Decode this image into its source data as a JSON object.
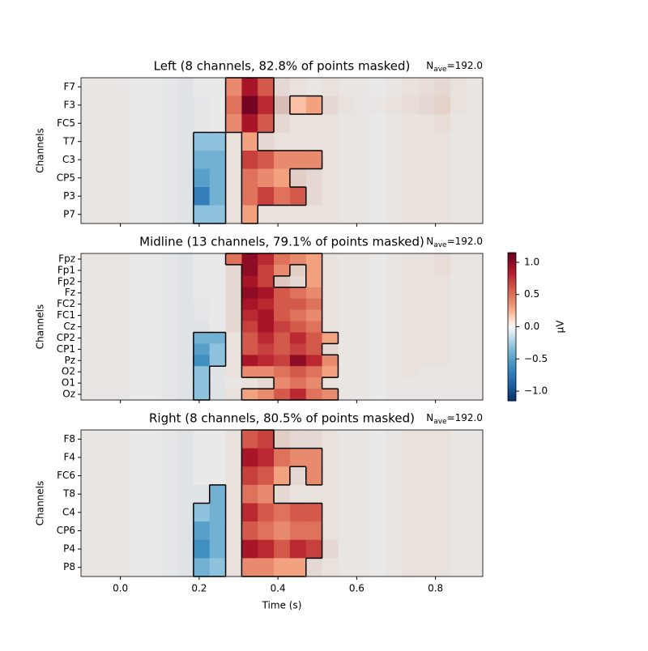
{
  "chart_data": [
    {
      "type": "heatmap",
      "title": "Left (8 channels, 82.8% of points masked)",
      "nave": {
        "symbol": "N",
        "subscript": "ave",
        "text": "=192.0"
      },
      "ylabel": "Channels",
      "xlim": [
        -0.1,
        0.92
      ],
      "xticks": [
        {
          "value": 0,
          "label": "0.0"
        },
        {
          "value": 0.2,
          "label": "0.2"
        },
        {
          "value": 0.4,
          "label": "0.4"
        },
        {
          "value": 0.6,
          "label": "0.6"
        },
        {
          "value": 0.8,
          "label": "0.8"
        }
      ],
      "categories": [
        "F7",
        "F3",
        "FC5",
        "T7",
        "C3",
        "CP5",
        "P3",
        "P7"
      ],
      "values": [
        [
          0.05,
          0.05,
          0.05,
          0,
          0,
          -0.05,
          -0.1,
          0,
          0,
          0.4,
          0.9,
          0.6,
          0.2,
          0.1,
          0.05,
          0.1,
          0.05,
          0.05,
          0,
          0.05,
          0.1,
          0.15,
          0.2,
          0.1,
          0.05
        ],
        [
          0.05,
          0.05,
          0.05,
          0,
          0,
          -0.05,
          -0.1,
          -0.05,
          0,
          0.5,
          1.1,
          0.8,
          0.5,
          0.2,
          0.3,
          0.2,
          0.1,
          0.05,
          0.05,
          0.1,
          0.15,
          0.2,
          0.25,
          0.1,
          0.05
        ],
        [
          0.05,
          0.05,
          0.05,
          0,
          0,
          -0.05,
          -0.1,
          -0.05,
          0,
          0.4,
          0.9,
          0.6,
          0.2,
          0.1,
          0.1,
          0.1,
          0.05,
          0.05,
          0,
          0.05,
          0.1,
          0.1,
          0.15,
          0.05,
          0.05
        ],
        [
          0.05,
          0.05,
          0.05,
          0,
          0,
          -0.05,
          -0.1,
          -0.3,
          -0.3,
          0.1,
          0.3,
          0.2,
          0.1,
          0.1,
          0.1,
          0.1,
          0.05,
          0.05,
          0,
          0.05,
          0.1,
          0.1,
          0.1,
          0.05,
          0.05
        ],
        [
          0.05,
          0.05,
          0.05,
          0,
          0,
          -0.05,
          -0.1,
          -0.4,
          -0.4,
          0.1,
          0.7,
          0.6,
          0.4,
          0.4,
          0.4,
          0.1,
          0.05,
          0.05,
          0,
          0.05,
          0.1,
          0.1,
          0.1,
          0.05,
          0.05
        ],
        [
          0.05,
          0.05,
          0.05,
          0,
          0,
          -0.05,
          -0.1,
          -0.5,
          -0.4,
          0.1,
          0.5,
          0.4,
          0.3,
          0.3,
          0.2,
          0.1,
          0.05,
          0.05,
          0,
          0.05,
          0.1,
          0.1,
          0.1,
          0.05,
          0.05
        ],
        [
          0.05,
          0.05,
          0.05,
          0,
          0,
          -0.05,
          -0.1,
          -0.7,
          -0.4,
          0.1,
          0.5,
          0.7,
          0.5,
          0.6,
          0.2,
          0.1,
          0.05,
          0.05,
          0,
          0.05,
          0.1,
          0.1,
          0.1,
          0.05,
          0.05
        ],
        [
          0.05,
          0.05,
          0.05,
          0,
          0,
          -0.05,
          -0.1,
          -0.3,
          -0.3,
          0.1,
          0.3,
          0.1,
          0.1,
          0.1,
          0.1,
          0.1,
          0.05,
          0.05,
          0,
          0.05,
          0.1,
          0.1,
          0.1,
          0.05,
          0.05
        ]
      ],
      "mask": [
        "0000000001110000000000000",
        "0000000001110110000000000",
        "0000000001110000000000000",
        "0000000110100000000000000",
        "0000000110111110000000000",
        "0000000110111000000000000",
        "0000000110111100000000000",
        "0000000110100000000000000"
      ]
    },
    {
      "type": "heatmap",
      "title": "Midline (13 channels, 79.1% of points masked)",
      "nave": {
        "symbol": "N",
        "subscript": "ave",
        "text": "=192.0"
      },
      "ylabel": "Channels",
      "xlim": [
        -0.1,
        0.92
      ],
      "xticks": [
        {
          "value": 0,
          "label": "0.0"
        },
        {
          "value": 0.2,
          "label": "0.2"
        },
        {
          "value": 0.4,
          "label": "0.4"
        },
        {
          "value": 0.6,
          "label": "0.6"
        },
        {
          "value": 0.8,
          "label": "0.8"
        }
      ],
      "categories": [
        "Fpz",
        "Fp1",
        "Fp2",
        "Fz",
        "FC2",
        "FC1",
        "Cz",
        "CP2",
        "CP1",
        "Pz",
        "O2",
        "O1",
        "Oz"
      ],
      "values": [
        [
          0.05,
          0.05,
          0.05,
          0,
          0,
          -0.05,
          -0.1,
          0,
          0,
          0.5,
          1.0,
          0.8,
          0.5,
          0.4,
          0.3,
          0.1,
          0.05,
          0.05,
          0,
          0.05,
          0.1,
          0.1,
          0.15,
          0.05,
          0.05
        ],
        [
          0.05,
          0.05,
          0.05,
          0,
          0,
          -0.05,
          -0.1,
          0,
          0,
          0.2,
          1.0,
          0.7,
          0.4,
          0.3,
          0.3,
          0.1,
          0.05,
          0.05,
          0,
          0.05,
          0.1,
          0.1,
          0.15,
          0.05,
          0.05
        ],
        [
          0.05,
          0.05,
          0.05,
          0,
          0,
          -0.05,
          -0.1,
          0,
          0,
          0.2,
          0.9,
          0.7,
          0.4,
          0.2,
          0.3,
          0.1,
          0.05,
          0.05,
          0,
          0.05,
          0.1,
          0.1,
          0.1,
          0.05,
          0.05
        ],
        [
          0.05,
          0.05,
          0.05,
          0,
          0,
          -0.05,
          -0.1,
          0,
          0,
          0.2,
          1.0,
          0.9,
          0.6,
          0.5,
          0.4,
          0.1,
          0.05,
          0.05,
          0,
          0.05,
          0.1,
          0.1,
          0.1,
          0.05,
          0.05
        ],
        [
          0.05,
          0.05,
          0.05,
          0,
          0,
          -0.05,
          -0.1,
          -0.05,
          0,
          0.2,
          0.9,
          0.8,
          0.6,
          0.6,
          0.5,
          0.1,
          0.05,
          0.05,
          0,
          0.05,
          0.1,
          0.1,
          0.1,
          0.05,
          0.05
        ],
        [
          0.05,
          0.05,
          0.05,
          0,
          0,
          -0.05,
          -0.1,
          -0.05,
          0,
          0.2,
          0.8,
          0.9,
          0.6,
          0.5,
          0.4,
          0.1,
          0.05,
          0.05,
          0,
          0.05,
          0.1,
          0.1,
          0.1,
          0.05,
          0.05
        ],
        [
          0.05,
          0.05,
          0.05,
          0,
          0,
          -0.05,
          -0.1,
          -0.1,
          0,
          0.2,
          0.7,
          0.9,
          0.7,
          0.6,
          0.5,
          0.1,
          0.05,
          0.05,
          0,
          0.05,
          0.1,
          0.1,
          0.1,
          0.05,
          0.05
        ],
        [
          0.05,
          0.05,
          0.05,
          0,
          0,
          -0.05,
          -0.1,
          -0.4,
          -0.4,
          0.1,
          0.6,
          0.8,
          0.6,
          0.8,
          0.6,
          0.3,
          0.05,
          0.05,
          0,
          0.05,
          0.1,
          0.1,
          0.1,
          0.05,
          0.05
        ],
        [
          0.05,
          0.05,
          0.05,
          0,
          0,
          -0.05,
          -0.1,
          -0.5,
          -0.3,
          0.1,
          0.6,
          0.7,
          0.6,
          0.7,
          0.6,
          0.2,
          0.05,
          0.05,
          0,
          0.05,
          0.1,
          0.1,
          0.1,
          0.05,
          0.05
        ],
        [
          0.05,
          0.05,
          0.05,
          0,
          0,
          -0.05,
          -0.1,
          -0.6,
          -0.3,
          0.1,
          0.9,
          0.8,
          0.7,
          1.0,
          0.8,
          0.4,
          0.05,
          0.05,
          0,
          0.05,
          0.1,
          0.1,
          0.1,
          0.05,
          0.05
        ],
        [
          0.05,
          0.05,
          0.05,
          0,
          0,
          -0.05,
          -0.1,
          -0.3,
          -0.1,
          0.1,
          0.4,
          0.4,
          0.5,
          0.6,
          0.5,
          0.3,
          0.05,
          0.05,
          0,
          0.05,
          0.1,
          0.05,
          0.05,
          0.05,
          0.05
        ],
        [
          0.05,
          0.05,
          0.05,
          0,
          0,
          -0.05,
          -0.1,
          -0.3,
          -0.1,
          0.05,
          0.1,
          0.2,
          0.4,
          0.5,
          0.4,
          0.1,
          0.05,
          0.05,
          0,
          0.05,
          0.05,
          0.05,
          0.05,
          0.05,
          0.05
        ],
        [
          0.05,
          0.05,
          0.05,
          0,
          0,
          -0.05,
          -0.1,
          -0.3,
          -0.1,
          0.1,
          0.3,
          0.4,
          0.6,
          0.8,
          0.5,
          0.4,
          0.05,
          0.05,
          0,
          0.05,
          0.05,
          0.05,
          0.05,
          0.05,
          0.05
        ]
      ],
      "mask": [
        "0000000001111110000000000",
        "0000000000111010000000000",
        "0000000000110010000000000",
        "0000000000111110000000000",
        "0000000000111110000000000",
        "0000000000111110000000000",
        "0000000000111110000000000",
        "0000000110111111000000000",
        "0000000110111110000000000",
        "0000000110111111000000000",
        "0000000100111111000000000",
        "0000000100001110000000000",
        "0000000100111111000000000"
      ]
    },
    {
      "type": "heatmap",
      "title": "Right (8 channels, 80.5% of points masked)",
      "nave": {
        "symbol": "N",
        "subscript": "ave",
        "text": "=192.0"
      },
      "ylabel": "Channels",
      "xlabel": "Time (s)",
      "xlim": [
        -0.1,
        0.92
      ],
      "xticks": [
        {
          "value": 0,
          "label": "0.0"
        },
        {
          "value": 0.2,
          "label": "0.2"
        },
        {
          "value": 0.4,
          "label": "0.4"
        },
        {
          "value": 0.6,
          "label": "0.6"
        },
        {
          "value": 0.8,
          "label": "0.8"
        }
      ],
      "categories": [
        "F8",
        "F4",
        "FC6",
        "T8",
        "C4",
        "CP6",
        "P4",
        "P8"
      ],
      "values": [
        [
          0.05,
          0.05,
          0.05,
          0,
          0,
          -0.05,
          -0.1,
          0,
          0,
          0.1,
          0.6,
          0.7,
          0.3,
          0.2,
          0.2,
          0.1,
          0.05,
          0.05,
          0,
          0.05,
          0.1,
          0.1,
          0.1,
          0.05,
          0.05
        ],
        [
          0.05,
          0.05,
          0.05,
          0,
          0,
          -0.05,
          -0.1,
          0,
          0,
          0.1,
          0.9,
          0.8,
          0.5,
          0.4,
          0.4,
          0.1,
          0.05,
          0.05,
          0,
          0.05,
          0.1,
          0.1,
          0.1,
          0.05,
          0.05
        ],
        [
          0.05,
          0.05,
          0.05,
          0,
          0,
          -0.05,
          -0.1,
          0,
          0,
          0.1,
          0.7,
          0.6,
          0.3,
          0.2,
          0.4,
          0.1,
          0.05,
          0.05,
          0,
          0.05,
          0.1,
          0.1,
          0.1,
          0.05,
          0.05
        ],
        [
          0.05,
          0.05,
          0.05,
          0,
          0,
          -0.05,
          -0.1,
          -0.1,
          -0.4,
          0.1,
          0.5,
          0.4,
          0.2,
          0.1,
          0.1,
          0.1,
          0.05,
          0.05,
          0,
          0.05,
          0.1,
          0.1,
          0.1,
          0.05,
          0.05
        ],
        [
          0.05,
          0.05,
          0.05,
          0,
          0,
          -0.05,
          -0.1,
          -0.3,
          -0.4,
          0.1,
          0.8,
          0.6,
          0.5,
          0.6,
          0.6,
          0.1,
          0.05,
          0.05,
          0,
          0.05,
          0.1,
          0.1,
          0.1,
          0.05,
          0.05
        ],
        [
          0.05,
          0.05,
          0.05,
          0,
          0,
          -0.05,
          -0.1,
          -0.5,
          -0.4,
          0.1,
          0.6,
          0.5,
          0.4,
          0.5,
          0.5,
          0.1,
          0.05,
          0.05,
          0,
          0.05,
          0.1,
          0.1,
          0.1,
          0.05,
          0.05
        ],
        [
          0.05,
          0.05,
          0.05,
          0,
          0,
          -0.05,
          -0.1,
          -0.6,
          -0.4,
          0.1,
          0.9,
          0.8,
          0.6,
          0.8,
          0.7,
          0.2,
          0.05,
          0.05,
          0,
          0.05,
          0.1,
          0.1,
          0.1,
          0.05,
          0.05
        ],
        [
          0.05,
          0.05,
          0.05,
          0,
          0,
          -0.05,
          -0.1,
          -0.4,
          -0.3,
          0.1,
          0.4,
          0.4,
          0.3,
          0.3,
          0.2,
          0.1,
          0.05,
          0.05,
          0,
          0.05,
          0.1,
          0.1,
          0.1,
          0.05,
          0.05
        ]
      ],
      "mask": [
        "0000000000110000000000000",
        "0000000000111110000000000",
        "0000000000111010000000000",
        "0000000010110000000000000",
        "0000000110111110000000000",
        "0000000110111110000000000",
        "0000000110111110000000000",
        "0000000110111100000000000"
      ]
    }
  ],
  "colorbar": {
    "label": "µV",
    "vlim": [
      -1.15,
      1.15
    ],
    "ticks": [
      {
        "value": -1,
        "label": "−1.0"
      },
      {
        "value": -0.5,
        "label": "−0.5"
      },
      {
        "value": 0,
        "label": "0.0"
      },
      {
        "value": 0.5,
        "label": "0.5"
      },
      {
        "value": 1,
        "label": "1.0"
      }
    ]
  }
}
